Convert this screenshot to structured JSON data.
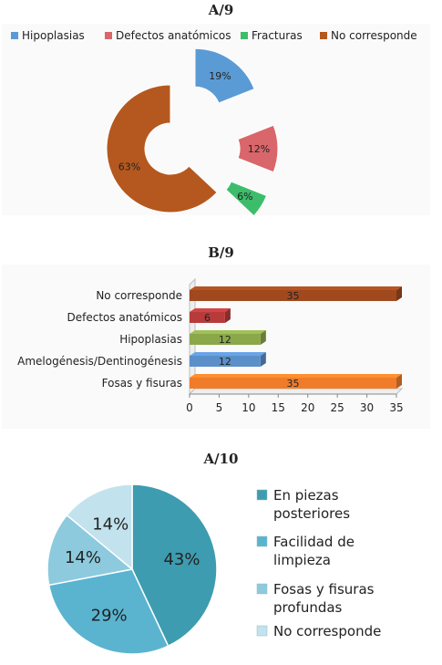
{
  "chart_data": [
    {
      "type": "pie",
      "title": "A/9",
      "labels": [
        "Hipoplasias",
        "Defectos anatómicos",
        "Fracturas",
        "No corresponde"
      ],
      "values": [
        19,
        12,
        6,
        63
      ],
      "value_labels": [
        "19%",
        "12%",
        "6%",
        "63%"
      ],
      "colors": [
        "#5b9bd5",
        "#d9666a",
        "#3dbd6b",
        "#b5581f"
      ],
      "style": "exploded doughnut",
      "legend": "top"
    },
    {
      "type": "bar",
      "orientation": "horizontal",
      "title": "B/9",
      "categories": [
        "No corresponde",
        "Defectos anatómicos",
        "Hipoplasias",
        "Amelogénesis/Dentinogénesis",
        "Fosas y fisuras"
      ],
      "values": [
        35,
        6,
        12,
        12,
        35
      ],
      "value_labels": [
        "35",
        "6",
        "12",
        "12",
        "35"
      ],
      "colors": [
        "#a0491e",
        "#b83b3b",
        "#8aa84a",
        "#5b8fc9",
        "#f07c2a"
      ],
      "xlim": [
        0,
        35
      ],
      "xticks": [
        "0",
        "5",
        "10",
        "15",
        "20",
        "25",
        "30",
        "35"
      ],
      "grid": false
    },
    {
      "type": "pie",
      "title": "A/10",
      "labels": [
        "En piezas posteriores",
        "Facilidad de limpieza",
        "Fosas y fisuras profundas",
        "No corresponde"
      ],
      "values": [
        43,
        29,
        14,
        14
      ],
      "value_labels": [
        "43%",
        "29%",
        "14%",
        "14%"
      ],
      "colors": [
        "#3d9cb0",
        "#5ab4d0",
        "#8dcade",
        "#c2e2ee"
      ],
      "legend": "right"
    }
  ]
}
